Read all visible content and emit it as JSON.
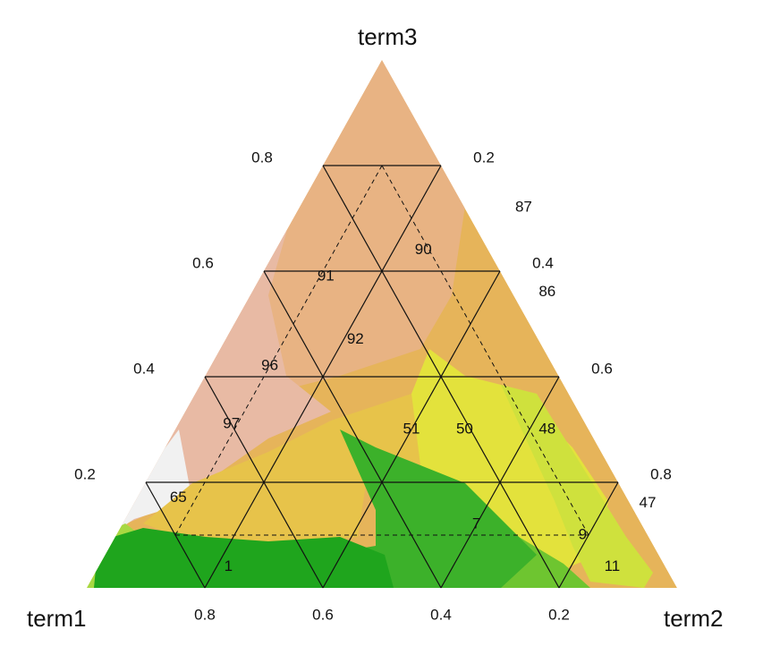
{
  "chart_data": {
    "type": "scatter",
    "subtype": "ternary-contour",
    "title": "",
    "corners": {
      "bottom_left": "term1",
      "bottom_right": "term2",
      "top": "term3"
    },
    "axis_ticks": {
      "bottom": [
        "0.8",
        "0.6",
        "0.4",
        "0.2"
      ],
      "left": [
        "0.2",
        "0.4",
        "0.6",
        "0.8"
      ],
      "right": [
        "0.2",
        "0.4",
        "0.6",
        "0.8"
      ]
    },
    "grid": true,
    "grid_levels": [
      0.2,
      0.4,
      0.6,
      0.8
    ],
    "points": [
      {
        "label": "87",
        "term2": 0.38,
        "term3": 0.72
      },
      {
        "label": "90",
        "term2": 0.25,
        "term3": 0.64
      },
      {
        "label": "91",
        "term2": 0.11,
        "term3": 0.59
      },
      {
        "label": "86",
        "term2": 0.5,
        "term3": 0.56
      },
      {
        "label": "92",
        "term2": 0.22,
        "term3": 0.47
      },
      {
        "label": "96",
        "term2": 0.1,
        "term3": 0.42
      },
      {
        "label": "97",
        "term2": 0.09,
        "term3": 0.31
      },
      {
        "label": "51",
        "term2": 0.4,
        "term3": 0.3
      },
      {
        "label": "50",
        "term2": 0.49,
        "term3": 0.3
      },
      {
        "label": "48",
        "term2": 0.63,
        "term3": 0.3
      },
      {
        "label": "65",
        "term2": 0.07,
        "term3": 0.17
      },
      {
        "label": "7",
        "term2": 0.6,
        "term3": 0.12
      },
      {
        "label": "47",
        "term2": 0.87,
        "term3": 0.16
      },
      {
        "label": "9",
        "term2": 0.79,
        "term3": 0.1
      },
      {
        "label": "1",
        "term2": 0.22,
        "term3": 0.04
      },
      {
        "label": "11",
        "term2": 0.87,
        "term3": 0.04
      }
    ],
    "contour_colors": [
      "#e6b45a",
      "#e8b383",
      "#e8baa4",
      "#f1f1f1",
      "#e7c34a",
      "#e3e23c",
      "#cfe13d",
      "#a8d842",
      "#6ec530",
      "#3cb12a",
      "#1fa51d"
    ]
  }
}
